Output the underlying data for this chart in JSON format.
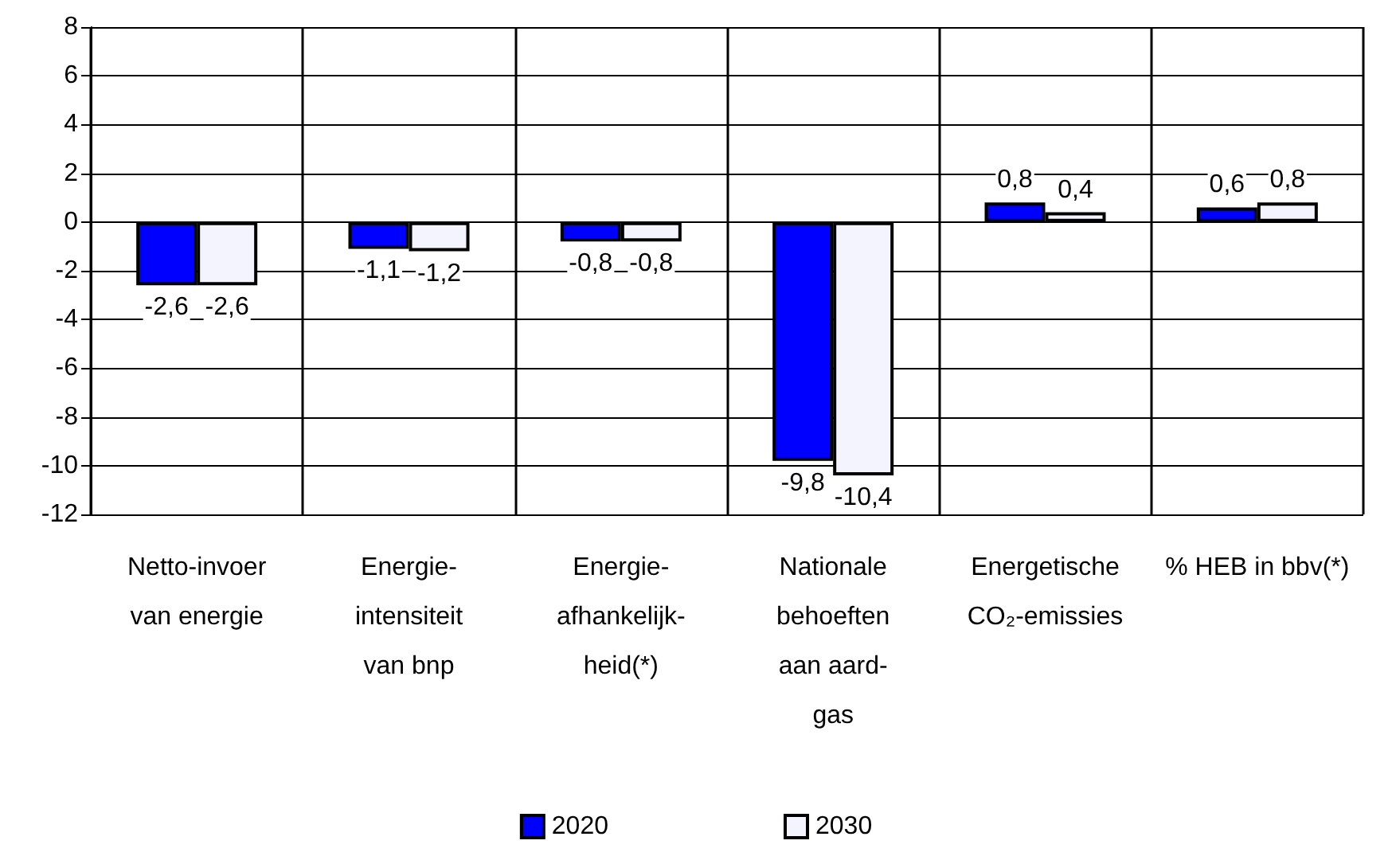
{
  "chart_data": {
    "type": "bar",
    "categories": [
      "Netto-invoer\nvan energie",
      "Energie-\nintensiteit\nvan bnp",
      "Energie-\nafhankelijk-\nheid(*)",
      "Nationale\nbehoeften\naan aard-\ngas",
      "Energetische\nCO₂-emissies",
      "% HEB in bbv(*)"
    ],
    "series": [
      {
        "name": "2020",
        "color": "#0000ff",
        "values": [
          -2.6,
          -1.1,
          -0.8,
          -9.8,
          0.8,
          0.6
        ],
        "value_labels": [
          "-2,6",
          "-1,1",
          "-0,8",
          "-9,8",
          "0,8",
          "0,6"
        ]
      },
      {
        "name": "2030",
        "color": "#f4f4ff",
        "values": [
          -2.6,
          -1.2,
          -0.8,
          -10.4,
          0.4,
          0.8
        ],
        "value_labels": [
          "-2,6",
          "-1,2",
          "-0,8",
          "-10,4",
          "0,4",
          "0,8"
        ]
      }
    ],
    "ylim": [
      -12,
      8
    ],
    "yticks": [
      -12,
      -10,
      -8,
      -6,
      -4,
      -2,
      0,
      2,
      4,
      6,
      8
    ],
    "grid": true,
    "legend": "bottom"
  }
}
